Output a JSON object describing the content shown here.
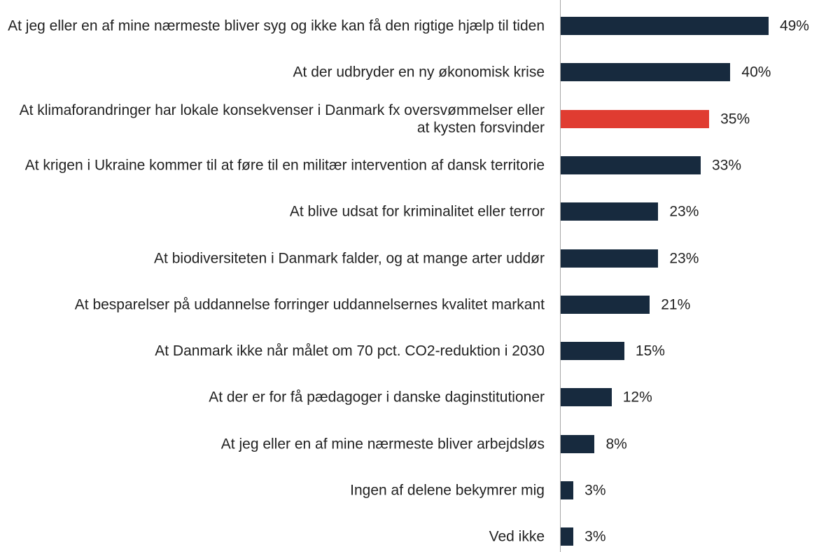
{
  "chart_data": {
    "type": "bar",
    "orientation": "horizontal",
    "categories": [
      "At jeg eller en af mine nærmeste bliver syg og ikke kan få den rigtige hjælp til tiden",
      "At der udbryder en ny økonomisk krise",
      "At klimaforandringer har lokale konsekvenser i Danmark fx oversvømmelser eller at kysten forsvinder",
      "At krigen i Ukraine kommer til at føre til en militær intervention af dansk territorie",
      "At blive udsat for kriminalitet eller terror",
      "At biodiversiteten i Danmark falder, og at mange arter uddør",
      "At besparelser på uddannelse forringer uddannelsernes kvalitet markant",
      "At Danmark ikke når målet om 70 pct. CO2-reduktion i 2030",
      "At der er for få pædagoger i danske daginstitutioner",
      "At jeg eller en af mine nærmeste bliver arbejdsløs",
      "Ingen af delene bekymrer mig",
      "Ved ikke"
    ],
    "values": [
      49,
      40,
      35,
      33,
      23,
      23,
      21,
      15,
      12,
      8,
      3,
      3
    ],
    "value_labels": [
      "49%",
      "40%",
      "35%",
      "33%",
      "23%",
      "23%",
      "21%",
      "15%",
      "12%",
      "8%",
      "3%",
      "3%"
    ],
    "colors": [
      "#172a3e",
      "#172a3e",
      "#e03c31",
      "#172a3e",
      "#172a3e",
      "#172a3e",
      "#172a3e",
      "#172a3e",
      "#172a3e",
      "#172a3e",
      "#172a3e",
      "#172a3e"
    ]
  }
}
